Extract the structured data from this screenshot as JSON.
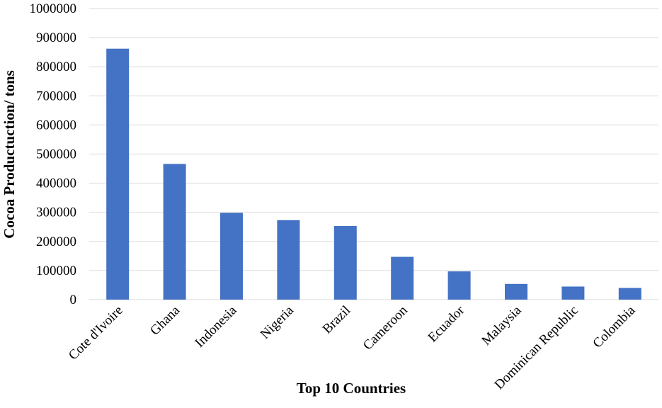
{
  "chart_data": {
    "type": "bar",
    "title": "",
    "xlabel": "Top 10 Countries",
    "ylabel": "Cocoa Productuction/ tons",
    "categories": [
      "Cote d'Ivoire",
      "Ghana",
      "Indonesia",
      "Nigeria",
      "Brazil",
      "Cameroon",
      "Ecuador",
      "Malaysia",
      "Dominican Republic",
      "Colombia"
    ],
    "values": [
      862000,
      466000,
      298000,
      273000,
      253000,
      147000,
      97000,
      54000,
      45000,
      40000
    ],
    "ylim": [
      0,
      1000000
    ],
    "yticks": [
      "0",
      "100000",
      "200000",
      "300000",
      "400000",
      "500000",
      "600000",
      "700000",
      "800000",
      "900000",
      "1000000"
    ],
    "grid": true,
    "bar_color": "#4472c4"
  }
}
